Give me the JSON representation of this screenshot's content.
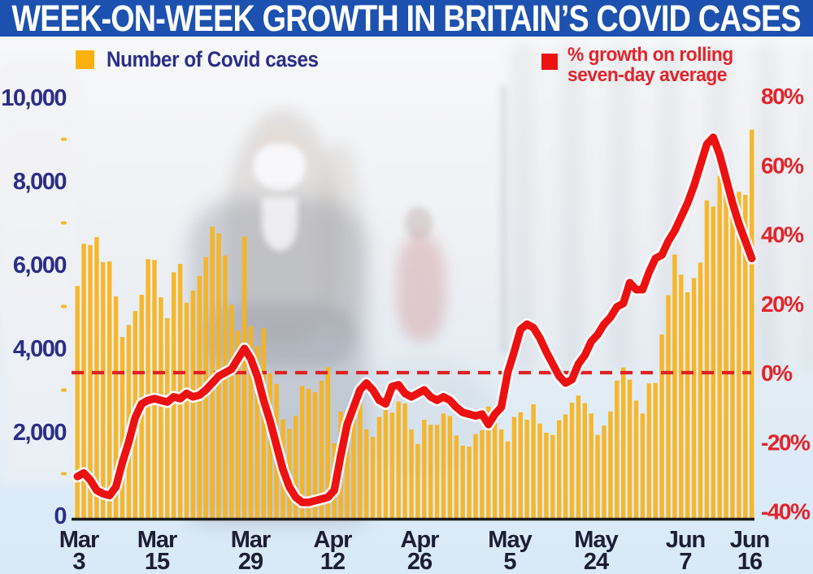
{
  "header": {
    "title": "WEEK-ON-WEEK GROWTH IN BRITAIN’S COVID CASES"
  },
  "legend": {
    "cases_label": "Number of Covid cases",
    "growth_label_line1": "% growth on rolling",
    "growth_label_line2": "seven-day average"
  },
  "colors": {
    "header_bg": "#1C51AF",
    "bar": "#F6B31C",
    "bar_legend_square": "#FBB10D",
    "growth_line": "#EC1212",
    "growth_line_halo": "#FFFFFF",
    "zero_dash": "#E02024",
    "navy_text": "#2C2E88",
    "red_text": "#E3242B",
    "x_label_text": "#1D1D33",
    "axis_line": "#1A1A1A"
  },
  "axes": {
    "left_ticks": [
      "0",
      "2,000",
      "4,000",
      "6,000",
      "8,000",
      "10,000"
    ],
    "right_ticks": [
      "-40%",
      "-20%",
      "0%",
      "20%",
      "40%",
      "60%",
      "80%"
    ],
    "x_ticks": [
      {
        "month": "Mar",
        "day": "3"
      },
      {
        "month": "Mar",
        "day": "15"
      },
      {
        "month": "Mar",
        "day": "29"
      },
      {
        "month": "Apr",
        "day": "12"
      },
      {
        "month": "Apr",
        "day": "26"
      },
      {
        "month": "May",
        "day": "5"
      },
      {
        "month": "May",
        "day": "24"
      },
      {
        "month": "Jun",
        "day": "7"
      },
      {
        "month": "Jun",
        "day": "16"
      }
    ]
  },
  "chart_data": {
    "type": "bar+line",
    "title": "WEEK-ON-WEEK GROWTH IN BRITAIN’S COVID CASES",
    "x_start": "Mar 3",
    "x_end": "Jun 16",
    "x_tick_labels": [
      "Mar 3",
      "Mar 15",
      "Mar 29",
      "Apr 12",
      "Apr 26",
      "May 5",
      "May 24",
      "Jun 7",
      "Jun 16"
    ],
    "left_axis": {
      "label": "Number of Covid cases",
      "range": [
        0,
        10000
      ],
      "tick_step": 2000
    },
    "right_axis": {
      "label": "% growth on rolling seven-day average",
      "range": [
        -40,
        80
      ],
      "tick_step": 20
    },
    "reference_line": {
      "axis": "right",
      "value": 0,
      "style": "dashed-red"
    },
    "grid": false,
    "legend_position": "top",
    "series": [
      {
        "name": "Number of Covid cases",
        "type": "bar",
        "axis": "left",
        "values": [
          5490,
          6500,
          6470,
          6660,
          6060,
          6080,
          5240,
          4270,
          4560,
          4890,
          5280,
          6130,
          6110,
          5220,
          4720,
          5820,
          6020,
          5090,
          5380,
          5730,
          6180,
          6910,
          6750,
          6220,
          5040,
          4420,
          6670,
          4530,
          4050,
          4480,
          3400,
          3150,
          2300,
          2070,
          2380,
          3100,
          3030,
          2950,
          3220,
          3550,
          1730,
          2490,
          2400,
          2670,
          2690,
          2060,
          1880,
          2360,
          2520,
          2460,
          2730,
          2680,
          2060,
          1710,
          2290,
          2170,
          2170,
          2440,
          2380,
          1910,
          1670,
          1650,
          1950,
          2040,
          2610,
          2490,
          2060,
          1770,
          2360,
          2470,
          2290,
          2660,
          2200,
          1980,
          1930,
          2280,
          2420,
          2700,
          2870,
          2690,
          2440,
          1930,
          2150,
          2490,
          3230,
          3540,
          3250,
          2750,
          2440,
          3160,
          3170,
          4330,
          5270,
          6240,
          5760,
          5340,
          5680,
          6050,
          7540,
          7390,
          8120,
          7740,
          7490,
          7740,
          7670,
          9230
        ]
      },
      {
        "name": "% growth on rolling seven-day average",
        "type": "line",
        "axis": "right",
        "values": [
          -30,
          -29,
          -31,
          -34,
          -35,
          -35.5,
          -33,
          -26,
          -20,
          -13,
          -9,
          -8,
          -7.5,
          -8,
          -8.5,
          -7,
          -7.5,
          -6,
          -7,
          -6.5,
          -5,
          -3,
          -1,
          0,
          1,
          4,
          7,
          4,
          -1,
          -8,
          -14,
          -21,
          -28,
          -33,
          -36,
          -37.5,
          -37.5,
          -37,
          -36.5,
          -36,
          -34,
          -24,
          -15,
          -10,
          -5,
          -3,
          -5,
          -8,
          -9,
          -4,
          -3.5,
          -6,
          -7,
          -6,
          -5,
          -7,
          -8,
          -7,
          -8,
          -10,
          -11.5,
          -12,
          -12.5,
          -12,
          -15,
          -12,
          -10,
          0,
          6,
          12.5,
          14,
          13,
          10,
          6,
          2.5,
          -1,
          -3,
          -2,
          2.5,
          5,
          9,
          11,
          14,
          16,
          19,
          20,
          26,
          24,
          24,
          29,
          33,
          34,
          38,
          41,
          45,
          49,
          54,
          60,
          66,
          68,
          63,
          56,
          49,
          43,
          38,
          33
        ]
      }
    ]
  }
}
